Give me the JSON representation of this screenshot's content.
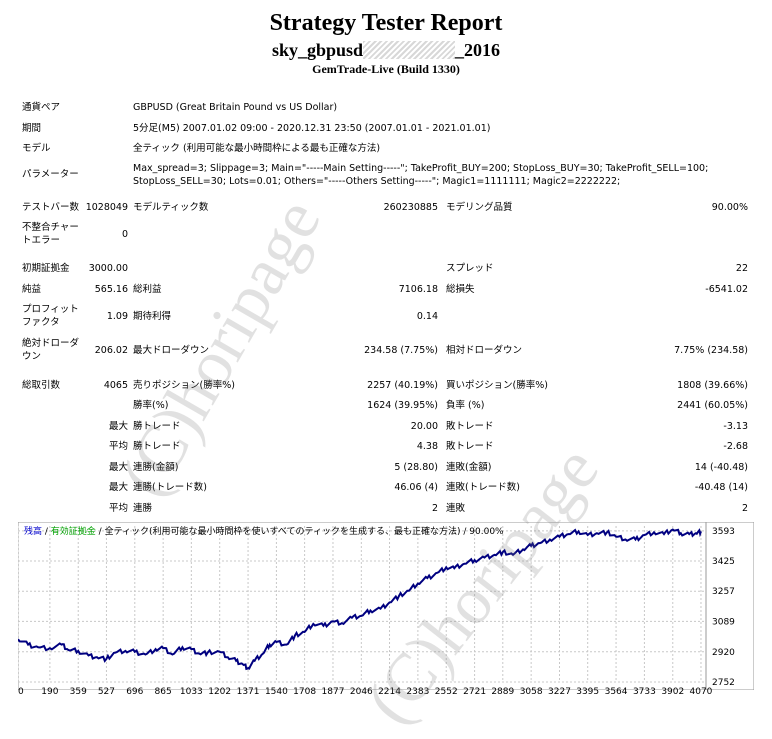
{
  "header": {
    "title": "Strategy Tester Report",
    "subtitle_prefix": "sky_gbpusd",
    "subtitle_suffix": "_2016",
    "build": "GemTrade-Live (Build 1330)"
  },
  "watermark": "(C)horipage",
  "info": {
    "symbol_label": "通貨ペア",
    "symbol_value": "GBPUSD (Great Britain Pound vs US Dollar)",
    "period_label": "期間",
    "period_value": "5分足(M5) 2007.01.02 09:00 - 2020.12.31 23:50 (2007.01.01 - 2021.01.01)",
    "model_label": "モデル",
    "model_value": "全ティック (利用可能な最小時間枠による最も正確な方法)",
    "params_label": "パラメーター",
    "params_line1": "Max_spread=3; Slippage=3; Main=\"-----Main Setting-----\"; TakeProfit_BUY=200; StopLoss_BUY=30; TakeProfit_SELL=100;",
    "params_line2": "StopLoss_SELL=30; Lots=0.01; Others=\"-----Others Setting-----\"; Magic1=1111111; Magic2=2222222;"
  },
  "stats": {
    "bars_label": "テストバー数",
    "bars_value": "1028049",
    "ticks_label": "モデルティック数",
    "ticks_value": "260230885",
    "quality_label": "モデリング品質",
    "quality_value": "90.00%",
    "mismatch_label_1": "不整合チャー",
    "mismatch_label_2": "トエラー",
    "mismatch_value": "0",
    "deposit_label": "初期証拠金",
    "deposit_value": "3000.00",
    "spread_label": "スプレッド",
    "spread_value": "22",
    "net_label": "純益",
    "net_value": "565.16",
    "gross_profit_label": "総利益",
    "gross_profit_value": "7106.18",
    "gross_loss_label": "総損失",
    "gross_loss_value": "-6541.02",
    "pf_label_1": "プロフィット",
    "pf_label_2": "ファクタ",
    "pf_value": "1.09",
    "expected_label": "期待利得",
    "expected_value": "0.14",
    "abs_dd_label_1": "絶対ドローダ",
    "abs_dd_label_2": "ウン",
    "abs_dd_value": "206.02",
    "max_dd_label": "最大ドローダウン",
    "max_dd_value": "234.58 (7.75%)",
    "rel_dd_label": "相対ドローダウン",
    "rel_dd_value": "7.75% (234.58)",
    "total_trades_label": "総取引数",
    "total_trades_value": "4065",
    "short_label": "売りポジション(勝率%)",
    "short_value": "2257 (40.19%)",
    "long_label": "買いポジション(勝率%)",
    "long_value": "1808 (39.66%)",
    "win_rate_label": "勝率(%)",
    "win_rate_value": "1624 (39.95%)",
    "loss_rate_label": "負率 (%)",
    "loss_rate_value": "2441 (60.05%)",
    "max_prefix": "最大",
    "avg_prefix": "平均",
    "largest_win_label": "勝トレード",
    "largest_win_value": "20.00",
    "largest_loss_label": "敗トレード",
    "largest_loss_value": "-3.13",
    "avg_win_label": "勝トレード",
    "avg_win_value": "4.38",
    "avg_loss_label": "敗トレード",
    "avg_loss_value": "-2.68",
    "cons_wins_label": "連勝(金額)",
    "cons_wins_value": "5 (28.80)",
    "cons_losses_label": "連敗(金額)",
    "cons_losses_value": "14 (-40.48)",
    "cons_profit_label": "連勝(トレード数)",
    "cons_profit_value": "46.06 (4)",
    "cons_loss_label": "連敗(トレード数)",
    "cons_loss_value": "-40.48 (14)",
    "avg_cons_wins_label": "連勝",
    "avg_cons_wins_value": "2",
    "avg_cons_losses_label": "連敗",
    "avg_cons_losses_value": "2"
  },
  "chart_legend": {
    "balance": "残高",
    "sep1": " / ",
    "equity": "有効証拠金",
    "sep2": " / ",
    "model": "全ティック(利用可能な最小時間枠を使いすべてのティックを生成する、最も正確な方法)",
    "sep3": " / ",
    "quality": "90.00%"
  },
  "colors": {
    "balance": "#0000cc",
    "equity": "#00a000",
    "line": "#000080"
  },
  "chart_data": {
    "type": "line",
    "title": "",
    "xlabel": "",
    "ylabel": "",
    "x_ticks": [
      0,
      190,
      359,
      527,
      696,
      865,
      1033,
      1202,
      1371,
      1540,
      1708,
      1877,
      2046,
      2214,
      2383,
      2552,
      2721,
      2889,
      3058,
      3227,
      3395,
      3564,
      3733,
      3902,
      4070
    ],
    "y_ticks": [
      2752,
      2920,
      3089,
      3257,
      3425,
      3593
    ],
    "xlim": [
      0,
      4100
    ],
    "ylim": [
      2752,
      3620
    ],
    "grid": true,
    "series": [
      {
        "name": "残高",
        "x": [
          0,
          60,
          120,
          190,
          260,
          300,
          359,
          420,
          470,
          527,
          580,
          640,
          696,
          760,
          820,
          865,
          920,
          980,
          1033,
          1080,
          1130,
          1202,
          1250,
          1300,
          1340,
          1371,
          1410,
          1460,
          1500,
          1540,
          1600,
          1650,
          1708,
          1760,
          1820,
          1877,
          1930,
          1990,
          2046,
          2100,
          2160,
          2214,
          2270,
          2330,
          2383,
          2440,
          2500,
          2552,
          2600,
          2660,
          2721,
          2780,
          2840,
          2889,
          2950,
          3010,
          3058,
          3110,
          3170,
          3227,
          3280,
          3340,
          3395,
          3450,
          3510,
          3564,
          3620,
          3680,
          3733,
          3790,
          3850,
          3902,
          3950,
          4000,
          4040,
          4070
        ],
        "values": [
          2990,
          2960,
          2945,
          2940,
          2960,
          2930,
          2925,
          2900,
          2890,
          2880,
          2915,
          2925,
          2920,
          2905,
          2935,
          2940,
          2905,
          2945,
          2935,
          2910,
          2915,
          2920,
          2890,
          2870,
          2850,
          2830,
          2870,
          2910,
          2960,
          2975,
          2960,
          3010,
          3030,
          3075,
          3065,
          3090,
          3080,
          3110,
          3120,
          3150,
          3160,
          3195,
          3230,
          3260,
          3300,
          3330,
          3360,
          3390,
          3385,
          3410,
          3430,
          3445,
          3460,
          3475,
          3460,
          3490,
          3510,
          3525,
          3545,
          3560,
          3575,
          3590,
          3570,
          3580,
          3585,
          3560,
          3545,
          3545,
          3570,
          3585,
          3575,
          3600,
          3580,
          3575,
          3580,
          3590
        ]
      }
    ]
  }
}
